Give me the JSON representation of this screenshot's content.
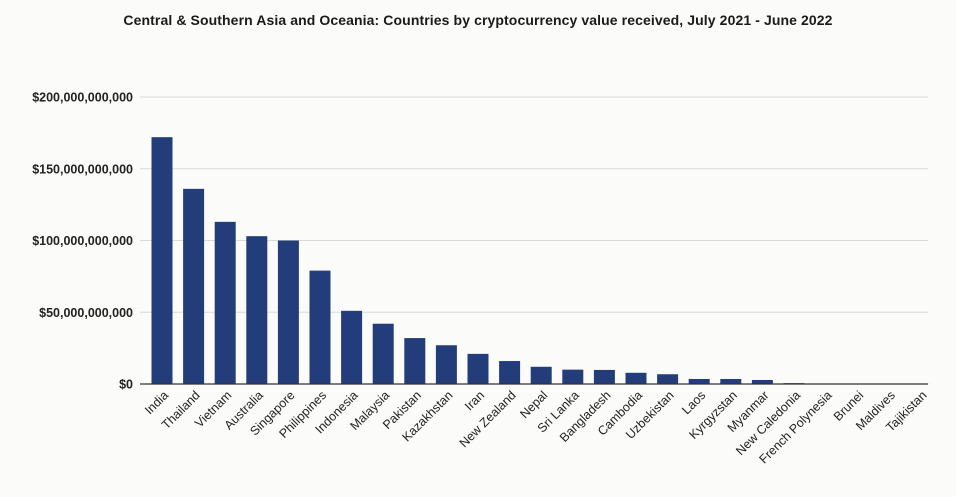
{
  "chart_data": {
    "type": "bar",
    "title": "Central & Southern Asia and Oceania: Countries by cryptocurrency value received, July 2021 - June 2022",
    "xlabel": "",
    "ylabel": "",
    "categories": [
      "India",
      "Thailand",
      "Vietnam",
      "Australia",
      "Singapore",
      "Philippines",
      "Indonesia",
      "Malaysia",
      "Pakistan",
      "Kazakhstan",
      "Iran",
      "New Zealand",
      "Nepal",
      "Sri Lanka",
      "Bangladesh",
      "Cambodia",
      "Uzbekistan",
      "Laos",
      "Kyrgyzstan",
      "Myanmar",
      "New Caledonia",
      "French Polynesia",
      "Brunei",
      "Maldives",
      "Tajikistan"
    ],
    "values": [
      172000000000,
      136000000000,
      113000000000,
      103000000000,
      100000000000,
      79000000000,
      51000000000,
      42000000000,
      32000000000,
      27000000000,
      21000000000,
      16000000000,
      12000000000,
      10000000000,
      9800000000,
      7800000000,
      6800000000,
      3500000000,
      3500000000,
      2800000000,
      600000000,
      200000000,
      100000000,
      50000000,
      30000000
    ],
    "ylim": [
      0,
      200000000000
    ],
    "yticks": [
      0,
      50000000000,
      100000000000,
      150000000000,
      200000000000
    ],
    "ytick_labels": [
      "$0",
      "$50,000,000,000",
      "$100,000,000,000",
      "$150,000,000,000",
      "$200,000,000,000"
    ],
    "grid": true,
    "legend": "none",
    "bar_color": "#223d7a",
    "grid_color": "#d9d9d9"
  }
}
